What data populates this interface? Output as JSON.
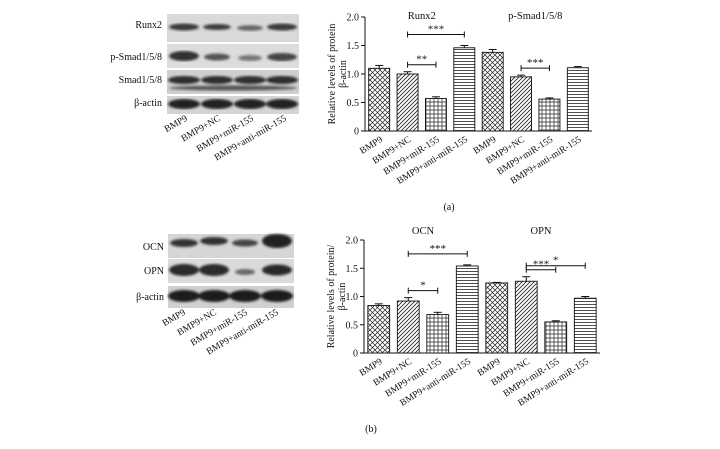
{
  "blot_samples": [
    "BMP9",
    "BMP9+NC",
    "BMP9+miR-155",
    "BMP9+anti-miR-155"
  ],
  "panel_a": {
    "panel_label": "(a)",
    "blot_labels": [
      "Runx2",
      "p-Smad1/5/8",
      "Smad1/5/8",
      "β-actin"
    ]
  },
  "panel_b": {
    "panel_label": "(b)",
    "blot_labels": [
      "OCN",
      "OPN",
      "β-actin"
    ]
  },
  "chart_data": [
    {
      "type": "bar",
      "ylabel": "Relative levels of protein β-actin",
      "ylim": [
        0,
        2.0
      ],
      "yticks": [
        0,
        0.5,
        1.0,
        1.5,
        2.0
      ],
      "tick_labels": [
        "0",
        "0.5",
        "1.0",
        "1.5",
        "2.0"
      ],
      "categories": [
        "BMP9",
        "BMP9+NC",
        "BMP9+miR-155",
        "BMP9+anti-miR-155"
      ],
      "groups": [
        {
          "name": "Runx2",
          "values": [
            1.1,
            1.0,
            0.57,
            1.46
          ],
          "errors": [
            0.05,
            0.04,
            0.03,
            0.04
          ],
          "annotations": [
            {
              "from": 1,
              "to": 2,
              "label": "**"
            },
            {
              "from": 1,
              "to": 3,
              "label": "***"
            }
          ]
        },
        {
          "name": "p-Smad1/5/8",
          "values": [
            1.38,
            0.95,
            0.56,
            1.11
          ],
          "errors": [
            0.05,
            0.03,
            0.02,
            0.02
          ],
          "annotations": [
            {
              "from": 1,
              "to": 2,
              "label": "***"
            }
          ]
        }
      ]
    },
    {
      "type": "bar",
      "ylabel": "Relative levels of protein/ β-actin",
      "ylim": [
        0,
        2.0
      ],
      "yticks": [
        0,
        0.5,
        1.0,
        1.5,
        2.0
      ],
      "tick_labels": [
        "0",
        "0.5",
        "1.0",
        "1.5",
        "2.0"
      ],
      "categories": [
        "BMP9",
        "BMP9+NC",
        "BMP9+miR-155",
        "BMP9+anti-miR-155"
      ],
      "groups": [
        {
          "name": "OCN",
          "values": [
            0.84,
            0.92,
            0.68,
            1.54
          ],
          "errors": [
            0.03,
            0.06,
            0.04,
            0.02
          ],
          "annotations": [
            {
              "from": 1,
              "to": 2,
              "label": "*"
            },
            {
              "from": 1,
              "to": 3,
              "label": "***"
            }
          ]
        },
        {
          "name": "OPN",
          "values": [
            1.24,
            1.27,
            0.55,
            0.97
          ],
          "errors": [
            0.01,
            0.08,
            0.02,
            0.03
          ],
          "annotations": [
            {
              "from": 1,
              "to": 2,
              "label": "***"
            },
            {
              "from": 1,
              "to": 3,
              "label": "*"
            }
          ]
        }
      ]
    }
  ]
}
